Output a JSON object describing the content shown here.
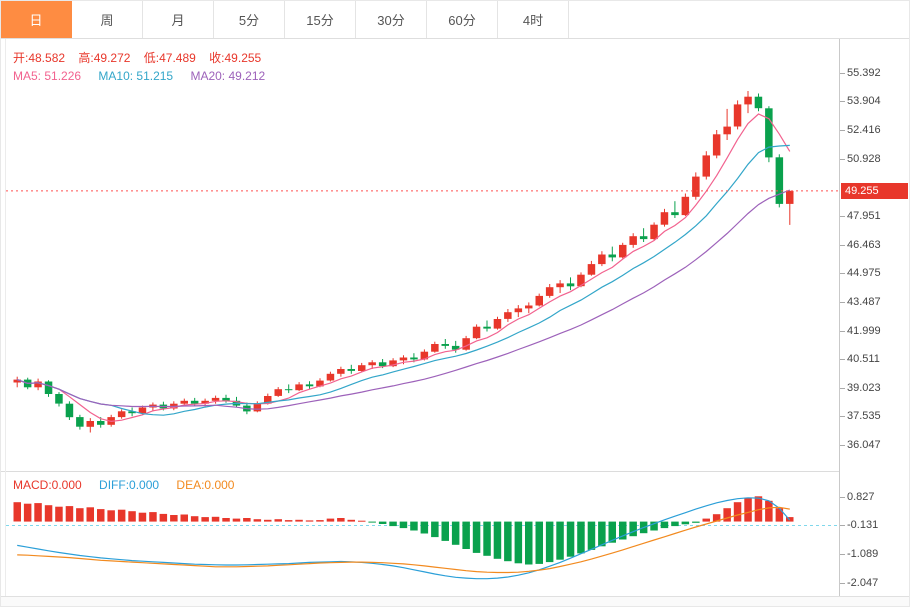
{
  "colors": {
    "up": "#e8372b",
    "down": "#0aa14d",
    "ma5": "#f2628f",
    "ma10": "#33a6c9",
    "ma20": "#9d62ba",
    "diff": "#2b9fd8",
    "dea": "#f28a1f",
    "price_line": "#ff5050",
    "badge_bg": "#e8372b",
    "badge_text": "#ffffff",
    "tab_active_bg": "#fe8c42",
    "tab_active_text": "#ffffff",
    "ohlc_text": "#e8372b",
    "axis_text": "#444444",
    "macd_dashed": "#7fd8ec"
  },
  "tabs": [
    {
      "key": "day",
      "label": "日",
      "active": true
    },
    {
      "key": "week",
      "label": "周",
      "active": false
    },
    {
      "key": "month",
      "label": "月",
      "active": false
    },
    {
      "key": "5min",
      "label": "5分",
      "active": false
    },
    {
      "key": "15min",
      "label": "15分",
      "active": false
    },
    {
      "key": "30min",
      "label": "30分",
      "active": false
    },
    {
      "key": "60min",
      "label": "60分",
      "active": false
    },
    {
      "key": "4hour",
      "label": "4时",
      "active": false
    }
  ],
  "price_panel": {
    "ohlc": {
      "open": "开:48.582",
      "high": "高:49.272",
      "low": "低:47.489",
      "close": "收:49.255"
    },
    "ma": {
      "ma5": "MA5: 51.226",
      "ma10": "MA10: 51.215",
      "ma20": "MA20: 49.212"
    },
    "current_price_badge": "49.255"
  },
  "macd_panel": {
    "macd": "MACD:0.000",
    "diff": "DIFF:0.000",
    "dea": "DEA:0.000"
  },
  "chart_data": [
    {
      "type": "candlestick",
      "title": "daily-kline",
      "legend_position": "top-left",
      "grid": false,
      "y_ticks": [
        55.392,
        53.904,
        52.416,
        50.928,
        47.951,
        46.463,
        44.975,
        43.487,
        41.999,
        40.511,
        39.023,
        37.535,
        36.047
      ],
      "y_domain": [
        34.7,
        57.15
      ],
      "current_price": 49.255,
      "overlays": [
        "MA5",
        "MA10",
        "MA20"
      ],
      "candles": [
        [
          39.3,
          39.6,
          39.05,
          39.45
        ],
        [
          39.45,
          39.55,
          38.95,
          39.05
        ],
        [
          39.05,
          39.5,
          38.9,
          39.35
        ],
        [
          39.35,
          39.42,
          38.55,
          38.7
        ],
        [
          38.7,
          38.8,
          38.05,
          38.2
        ],
        [
          38.2,
          38.32,
          37.35,
          37.5
        ],
        [
          37.5,
          37.62,
          36.85,
          37.0
        ],
        [
          37.0,
          37.45,
          36.7,
          37.3
        ],
        [
          37.3,
          37.5,
          36.95,
          37.1
        ],
        [
          37.1,
          37.62,
          37.0,
          37.5
        ],
        [
          37.5,
          37.9,
          37.42,
          37.8
        ],
        [
          37.8,
          38.0,
          37.55,
          37.7
        ],
        [
          37.7,
          38.1,
          37.62,
          38.0
        ],
        [
          38.0,
          38.26,
          37.8,
          38.15
        ],
        [
          38.15,
          38.3,
          37.85,
          37.95
        ],
        [
          37.95,
          38.32,
          37.86,
          38.2
        ],
        [
          38.2,
          38.46,
          38.05,
          38.35
        ],
        [
          38.35,
          38.5,
          38.1,
          38.2
        ],
        [
          38.2,
          38.46,
          38.06,
          38.35
        ],
        [
          38.35,
          38.62,
          38.2,
          38.5
        ],
        [
          38.5,
          38.66,
          38.25,
          38.35
        ],
        [
          38.35,
          38.55,
          38.0,
          38.1
        ],
        [
          38.1,
          38.26,
          37.65,
          37.8
        ],
        [
          37.8,
          38.32,
          37.75,
          38.2
        ],
        [
          38.2,
          38.72,
          38.15,
          38.6
        ],
        [
          38.6,
          39.06,
          38.55,
          38.95
        ],
        [
          38.95,
          39.2,
          38.75,
          38.9
        ],
        [
          38.9,
          39.32,
          38.85,
          39.2
        ],
        [
          39.2,
          39.36,
          38.95,
          39.1
        ],
        [
          39.1,
          39.52,
          39.05,
          39.4
        ],
        [
          39.4,
          39.86,
          39.35,
          39.75
        ],
        [
          39.75,
          40.12,
          39.6,
          40.0
        ],
        [
          40.0,
          40.22,
          39.75,
          39.9
        ],
        [
          39.9,
          40.32,
          39.85,
          40.2
        ],
        [
          40.2,
          40.46,
          40.0,
          40.35
        ],
        [
          40.35,
          40.52,
          40.05,
          40.15
        ],
        [
          40.15,
          40.56,
          40.1,
          40.45
        ],
        [
          40.45,
          40.72,
          40.25,
          40.6
        ],
        [
          40.6,
          40.82,
          40.35,
          40.5
        ],
        [
          40.5,
          41.02,
          40.45,
          40.9
        ],
        [
          40.9,
          41.42,
          40.85,
          41.3
        ],
        [
          41.3,
          41.56,
          41.05,
          41.2
        ],
        [
          41.2,
          41.46,
          40.85,
          41.0
        ],
        [
          41.0,
          41.72,
          40.95,
          41.6
        ],
        [
          41.6,
          42.32,
          41.55,
          42.2
        ],
        [
          42.2,
          42.52,
          41.95,
          42.1
        ],
        [
          42.1,
          42.72,
          42.05,
          42.6
        ],
        [
          42.6,
          43.12,
          42.45,
          42.95
        ],
        [
          42.95,
          43.32,
          42.7,
          43.15
        ],
        [
          43.15,
          43.46,
          42.9,
          43.3
        ],
        [
          43.3,
          43.92,
          43.25,
          43.8
        ],
        [
          43.8,
          44.42,
          43.7,
          44.25
        ],
        [
          44.25,
          44.62,
          43.95,
          44.45
        ],
        [
          44.45,
          44.76,
          44.1,
          44.3
        ],
        [
          44.3,
          45.02,
          44.25,
          44.9
        ],
        [
          44.9,
          45.62,
          44.85,
          45.45
        ],
        [
          45.45,
          46.12,
          45.35,
          45.95
        ],
        [
          45.95,
          46.36,
          45.6,
          45.8
        ],
        [
          45.8,
          46.56,
          45.75,
          46.45
        ],
        [
          46.45,
          47.06,
          46.3,
          46.9
        ],
        [
          46.9,
          47.32,
          46.6,
          46.75
        ],
        [
          46.75,
          47.62,
          46.7,
          47.5
        ],
        [
          47.5,
          48.32,
          47.4,
          48.15
        ],
        [
          48.15,
          48.72,
          47.85,
          48.0
        ],
        [
          48.0,
          49.12,
          47.95,
          48.95
        ],
        [
          48.95,
          50.22,
          48.8,
          50.0
        ],
        [
          50.0,
          51.32,
          49.85,
          51.1
        ],
        [
          51.1,
          52.42,
          50.95,
          52.2
        ],
        [
          52.2,
          53.52,
          51.9,
          52.6
        ],
        [
          52.6,
          53.96,
          52.45,
          53.75
        ],
        [
          53.75,
          54.45,
          53.3,
          54.15
        ],
        [
          54.15,
          54.32,
          53.4,
          53.55
        ],
        [
          53.55,
          53.66,
          50.75,
          51.0
        ],
        [
          51.0,
          51.16,
          48.4,
          48.58
        ],
        [
          48.582,
          49.272,
          47.489,
          49.255
        ]
      ]
    },
    {
      "type": "bar",
      "title": "MACD",
      "grid": false,
      "y_ticks": [
        0.827,
        -0.131,
        -1.089,
        -2.047
      ],
      "y_domain": [
        -2.5,
        1.7
      ],
      "dashed_level": -0.131,
      "histogram": [
        0.65,
        0.6,
        0.62,
        0.55,
        0.5,
        0.52,
        0.45,
        0.48,
        0.42,
        0.38,
        0.4,
        0.35,
        0.3,
        0.32,
        0.26,
        0.22,
        0.24,
        0.18,
        0.15,
        0.16,
        0.12,
        0.1,
        0.12,
        0.08,
        0.06,
        0.08,
        0.05,
        0.06,
        0.04,
        0.05,
        0.1,
        0.12,
        0.06,
        0.03,
        -0.03,
        -0.08,
        -0.15,
        -0.22,
        -0.3,
        -0.4,
        -0.52,
        -0.65,
        -0.78,
        -0.92,
        -1.05,
        -1.15,
        -1.25,
        -1.33,
        -1.4,
        -1.44,
        -1.42,
        -1.36,
        -1.28,
        -1.18,
        -1.07,
        -0.95,
        -0.83,
        -0.71,
        -0.6,
        -0.49,
        -0.39,
        -0.3,
        -0.22,
        -0.15,
        -0.09,
        -0.04,
        0.1,
        0.25,
        0.45,
        0.65,
        0.8,
        0.85,
        0.7,
        0.45,
        0.15
      ],
      "series": [
        {
          "name": "DIFF",
          "values": [
            -0.8,
            -0.86,
            -0.92,
            -0.98,
            -1.04,
            -1.09,
            -1.14,
            -1.18,
            -1.22,
            -1.25,
            -1.28,
            -1.31,
            -1.33,
            -1.35,
            -1.37,
            -1.39,
            -1.41,
            -1.43,
            -1.44,
            -1.45,
            -1.46,
            -1.46,
            -1.45,
            -1.44,
            -1.43,
            -1.42,
            -1.41,
            -1.39,
            -1.37,
            -1.36,
            -1.35,
            -1.34,
            -1.35,
            -1.37,
            -1.4,
            -1.44,
            -1.49,
            -1.55,
            -1.62,
            -1.69,
            -1.76,
            -1.82,
            -1.87,
            -1.9,
            -1.92,
            -1.92,
            -1.9,
            -1.86,
            -1.8,
            -1.72,
            -1.62,
            -1.5,
            -1.37,
            -1.23,
            -1.08,
            -0.93,
            -0.78,
            -0.63,
            -0.48,
            -0.34,
            -0.2,
            -0.07,
            0.06,
            0.18,
            0.3,
            0.42,
            0.53,
            0.63,
            0.71,
            0.77,
            0.8,
            0.79,
            0.7,
            0.45,
            0.05
          ]
        },
        {
          "name": "DEA",
          "values": [
            -1.12,
            -1.13,
            -1.15,
            -1.17,
            -1.19,
            -1.21,
            -1.24,
            -1.27,
            -1.3,
            -1.32,
            -1.34,
            -1.36,
            -1.38,
            -1.4,
            -1.42,
            -1.44,
            -1.46,
            -1.48,
            -1.5,
            -1.52,
            -1.52,
            -1.52,
            -1.51,
            -1.5,
            -1.49,
            -1.47,
            -1.45,
            -1.43,
            -1.41,
            -1.39,
            -1.38,
            -1.37,
            -1.36,
            -1.36,
            -1.37,
            -1.38,
            -1.4,
            -1.42,
            -1.45,
            -1.49,
            -1.53,
            -1.57,
            -1.61,
            -1.65,
            -1.68,
            -1.7,
            -1.71,
            -1.71,
            -1.7,
            -1.67,
            -1.63,
            -1.58,
            -1.51,
            -1.43,
            -1.35,
            -1.26,
            -1.16,
            -1.06,
            -0.95,
            -0.84,
            -0.73,
            -0.62,
            -0.51,
            -0.4,
            -0.29,
            -0.18,
            -0.08,
            0.02,
            0.12,
            0.22,
            0.31,
            0.4,
            0.46,
            0.48,
            0.42
          ]
        }
      ]
    }
  ]
}
